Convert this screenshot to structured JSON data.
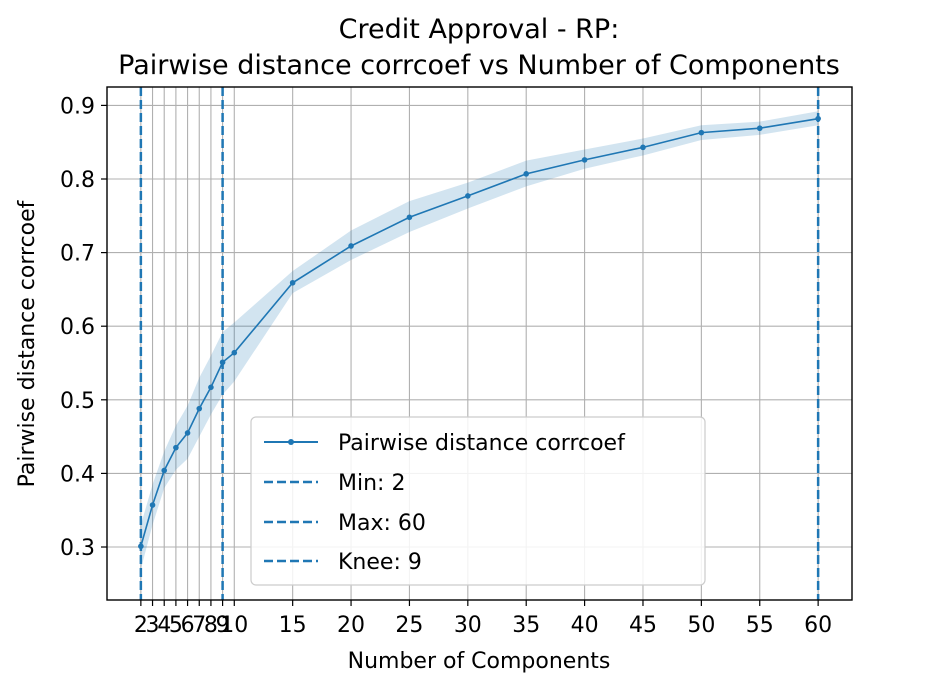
{
  "chart_data": {
    "type": "line",
    "title": [
      "Credit Approval - RP:",
      "Pairwise distance corrcoef vs Number of Components"
    ],
    "xlabel": "Number of Components",
    "ylabel": "Pairwise distance corrcoef",
    "xlim": [
      -0.9,
      62.9
    ],
    "ylim": [
      0.228,
      0.925
    ],
    "x_ticks": [
      2,
      3,
      4,
      5,
      6,
      7,
      8,
      9,
      10,
      15,
      20,
      25,
      30,
      35,
      40,
      45,
      50,
      55,
      60
    ],
    "x_tick_labels": [
      "2",
      "3",
      "4",
      "5",
      "6",
      "7",
      "8",
      "9",
      "10",
      "15",
      "20",
      "25",
      "30",
      "35",
      "40",
      "45",
      "50",
      "55",
      "60"
    ],
    "y_ticks": [
      0.3,
      0.4,
      0.5,
      0.6,
      0.7,
      0.8,
      0.9
    ],
    "y_tick_labels": [
      "0.3",
      "0.4",
      "0.5",
      "0.6",
      "0.7",
      "0.8",
      "0.9"
    ],
    "grid": true,
    "legend_position": "lower-right",
    "series": [
      {
        "name": "Pairwise distance corrcoef",
        "color": "#1f77b4",
        "band_color": "#1f77b4",
        "x": [
          2,
          3,
          4,
          5,
          6,
          7,
          8,
          9,
          10,
          15,
          20,
          25,
          30,
          35,
          40,
          45,
          50,
          55,
          60
        ],
        "y": [
          0.301,
          0.357,
          0.404,
          0.435,
          0.455,
          0.488,
          0.517,
          0.551,
          0.564,
          0.659,
          0.709,
          0.748,
          0.777,
          0.807,
          0.826,
          0.843,
          0.863,
          0.869,
          0.882
        ],
        "y_lower": [
          0.27,
          0.33,
          0.38,
          0.405,
          0.42,
          0.45,
          0.48,
          0.507,
          0.525,
          0.645,
          0.69,
          0.728,
          0.76,
          0.79,
          0.814,
          0.832,
          0.853,
          0.86,
          0.873
        ],
        "y_upper": [
          0.33,
          0.385,
          0.43,
          0.465,
          0.492,
          0.53,
          0.56,
          0.592,
          0.605,
          0.675,
          0.73,
          0.77,
          0.795,
          0.825,
          0.84,
          0.855,
          0.873,
          0.878,
          0.892
        ]
      }
    ],
    "vlines": [
      {
        "label": "Min: 2",
        "x": 2,
        "color": "#1f77b4",
        "style": "dashed"
      },
      {
        "label": "Max: 60",
        "x": 60,
        "color": "#1f77b4",
        "style": "dashed"
      },
      {
        "label": "Knee: 9",
        "x": 9,
        "color": "#1f77b4",
        "style": "dashed"
      }
    ]
  }
}
